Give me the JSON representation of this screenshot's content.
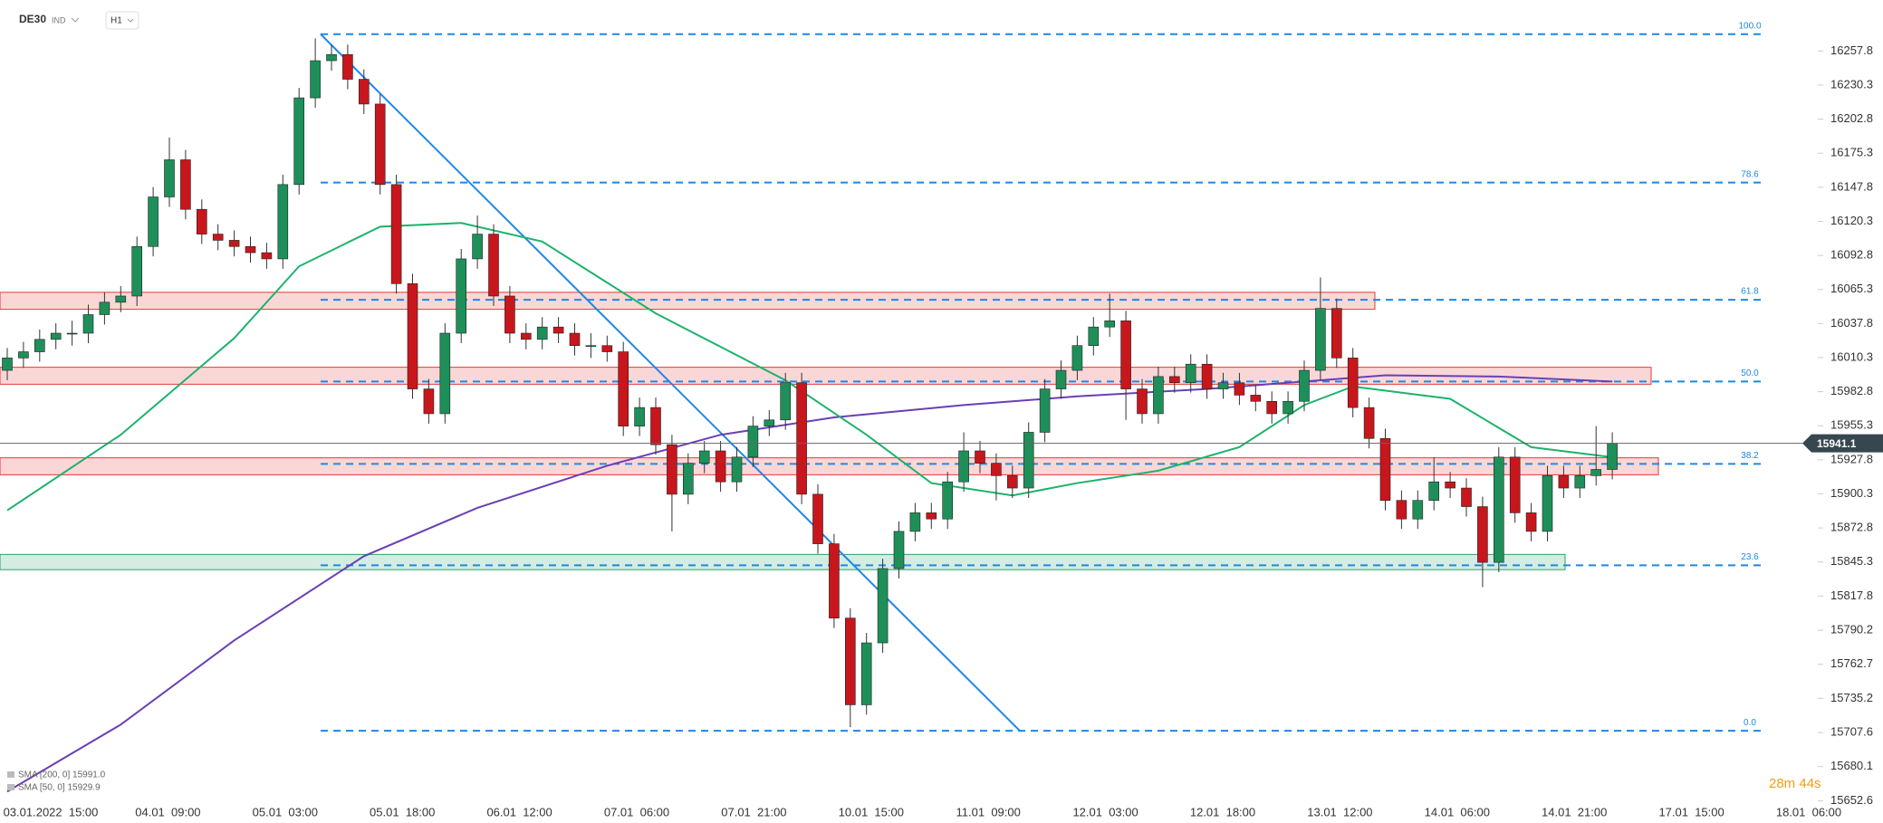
{
  "header": {
    "symbol": "DE30",
    "kind": "IND",
    "interval": "H1"
  },
  "chart_data": {
    "type": "candlestick",
    "ylim": [
      15647,
      16299
    ],
    "yticks": [
      15652.6,
      15680.1,
      15707.6,
      15735.2,
      15762.7,
      15790.2,
      15817.8,
      15845.3,
      15872.8,
      15900.3,
      15927.8,
      15955.3,
      15982.8,
      16010.3,
      16037.8,
      16065.3,
      16092.8,
      16120.3,
      16147.8,
      16175.3,
      16202.8,
      16230.3,
      16257.8
    ],
    "x_labels": [
      "03.01.2022  15:00",
      "04.01  09:00",
      "05.01  03:00",
      "05.01  18:00",
      "06.01  12:00",
      "07.01  06:00",
      "07.01  21:00",
      "10.01  15:00",
      "11.01  09:00",
      "12.01  03:00",
      "12.01  18:00",
      "13.01  12:00",
      "14.01  06:00",
      "14.01  21:00",
      "17.01  15:00",
      "18.01  06:00"
    ],
    "up_color": "#1f8f5a",
    "down_color": "#c8161d",
    "ohlc": [
      [
        16000,
        16018,
        15992,
        16010
      ],
      [
        16010,
        16023,
        16002,
        16015
      ],
      [
        16015,
        16033,
        16007,
        16025
      ],
      [
        16025,
        16038,
        16017,
        16030
      ],
      [
        16030,
        16040,
        16020,
        16030
      ],
      [
        16030,
        16053,
        16022,
        16045
      ],
      [
        16045,
        16063,
        16037,
        16055
      ],
      [
        16055,
        16068,
        16047,
        16060
      ],
      [
        16060,
        16108,
        16052,
        16100
      ],
      [
        16100,
        16148,
        16092,
        16140
      ],
      [
        16140,
        16188,
        16132,
        16170
      ],
      [
        16170,
        16178,
        16122,
        16130
      ],
      [
        16130,
        16138,
        16102,
        16110
      ],
      [
        16110,
        16118,
        16097,
        16105
      ],
      [
        16105,
        16113,
        16092,
        16100
      ],
      [
        16100,
        16108,
        16087,
        16095
      ],
      [
        16095,
        16103,
        16082,
        16090
      ],
      [
        16090,
        16158,
        16082,
        16150
      ],
      [
        16150,
        16228,
        16142,
        16220
      ],
      [
        16220,
        16268,
        16212,
        16250
      ],
      [
        16250,
        16263,
        16242,
        16255
      ],
      [
        16255,
        16263,
        16227,
        16235
      ],
      [
        16235,
        16243,
        16207,
        16215
      ],
      [
        16215,
        16223,
        16142,
        16150
      ],
      [
        16150,
        16158,
        16062,
        16070
      ],
      [
        16070,
        16078,
        15977,
        15985
      ],
      [
        15985,
        15993,
        15957,
        15965
      ],
      [
        15965,
        16038,
        15957,
        16030
      ],
      [
        16030,
        16098,
        16022,
        16090
      ],
      [
        16090,
        16125,
        16082,
        16110
      ],
      [
        16110,
        16118,
        16052,
        16060
      ],
      [
        16060,
        16068,
        16022,
        16030
      ],
      [
        16030,
        16038,
        16017,
        16025
      ],
      [
        16025,
        16043,
        16017,
        16035
      ],
      [
        16035,
        16043,
        16022,
        16030
      ],
      [
        16030,
        16038,
        16012,
        16020
      ],
      [
        16020,
        16030,
        16010,
        16020
      ],
      [
        16020,
        16028,
        16007,
        16015
      ],
      [
        16015,
        16023,
        15947,
        15955
      ],
      [
        15955,
        15978,
        15947,
        15970
      ],
      [
        15970,
        15978,
        15932,
        15940
      ],
      [
        15940,
        15948,
        15870,
        15900
      ],
      [
        15900,
        15933,
        15892,
        15925
      ],
      [
        15925,
        15943,
        15917,
        15935
      ],
      [
        15935,
        15943,
        15902,
        15910
      ],
      [
        15910,
        15938,
        15902,
        15930
      ],
      [
        15930,
        15963,
        15922,
        15955
      ],
      [
        15955,
        15968,
        15947,
        15960
      ],
      [
        15960,
        15998,
        15952,
        15990
      ],
      [
        15990,
        15998,
        15892,
        15900
      ],
      [
        15900,
        15908,
        15852,
        15860
      ],
      [
        15860,
        15868,
        15792,
        15800
      ],
      [
        15800,
        15808,
        15712,
        15730
      ],
      [
        15730,
        15788,
        15722,
        15780
      ],
      [
        15780,
        15848,
        15772,
        15840
      ],
      [
        15840,
        15878,
        15832,
        15870
      ],
      [
        15870,
        15893,
        15862,
        15885
      ],
      [
        15885,
        15893,
        15872,
        15880
      ],
      [
        15880,
        15918,
        15872,
        15910
      ],
      [
        15910,
        15950,
        15902,
        15935
      ],
      [
        15935,
        15943,
        15917,
        15925
      ],
      [
        15925,
        15933,
        15895,
        15915
      ],
      [
        15915,
        15923,
        15897,
        15905
      ],
      [
        15905,
        15958,
        15897,
        15950
      ],
      [
        15950,
        15993,
        15942,
        15985
      ],
      [
        15985,
        16008,
        15977,
        16000
      ],
      [
        16000,
        16028,
        15992,
        16020
      ],
      [
        16020,
        16043,
        16012,
        16035
      ],
      [
        16035,
        16062,
        16027,
        16040
      ],
      [
        16040,
        16048,
        15960,
        15985
      ],
      [
        15985,
        15993,
        15957,
        15965
      ],
      [
        15965,
        16003,
        15957,
        15995
      ],
      [
        15995,
        16003,
        15982,
        15990
      ],
      [
        15990,
        16013,
        15982,
        16005
      ],
      [
        16005,
        16013,
        15977,
        15985
      ],
      [
        15985,
        15998,
        15977,
        15990
      ],
      [
        15990,
        15998,
        15972,
        15980
      ],
      [
        15980,
        15988,
        15967,
        15975
      ],
      [
        15975,
        15983,
        15957,
        15965
      ],
      [
        15965,
        15983,
        15957,
        15975
      ],
      [
        15975,
        16008,
        15967,
        16000
      ],
      [
        16000,
        16075,
        15992,
        16050
      ],
      [
        16050,
        16058,
        16002,
        16010
      ],
      [
        16010,
        16018,
        15962,
        15970
      ],
      [
        15970,
        15978,
        15937,
        15945
      ],
      [
        15945,
        15953,
        15887,
        15895
      ],
      [
        15895,
        15903,
        15872,
        15880
      ],
      [
        15880,
        15903,
        15872,
        15895
      ],
      [
        15895,
        15930,
        15887,
        15910
      ],
      [
        15910,
        15918,
        15897,
        15905
      ],
      [
        15905,
        15913,
        15882,
        15890
      ],
      [
        15890,
        15898,
        15825,
        15845
      ],
      [
        15845,
        15938,
        15837,
        15930
      ],
      [
        15930,
        15938,
        15877,
        15885
      ],
      [
        15885,
        15893,
        15862,
        15870
      ],
      [
        15870,
        15923,
        15862,
        15915
      ],
      [
        15915,
        15923,
        15897,
        15905
      ],
      [
        15905,
        15923,
        15897,
        15915
      ],
      [
        15915,
        15955,
        15907,
        15920
      ],
      [
        15920,
        15950,
        15912,
        15941.1
      ]
    ],
    "series": [
      {
        "name": "SMA [200, 0] 15991.0",
        "color": "#6a3fb5",
        "x": [
          0,
          7,
          14,
          22,
          29,
          37,
          44,
          51,
          59,
          66,
          74,
          81,
          85,
          92,
          99
        ],
        "values": [
          15660,
          15714,
          15782,
          15850,
          15889,
          15923,
          15948,
          15962,
          15972,
          15979,
          15985,
          15992,
          15996,
          15995,
          15991
        ]
      },
      {
        "name": "SMA [50, 0] 15929.9",
        "color": "#1db26b",
        "x": [
          0,
          7,
          14,
          18,
          23,
          28,
          33,
          40,
          48,
          53,
          57,
          62,
          66,
          71,
          76,
          80,
          83,
          89,
          94,
          99
        ],
        "values": [
          15887,
          15948,
          16026,
          16084,
          16116,
          16119,
          16104,
          16046,
          15992,
          15948,
          15909,
          15899,
          15909,
          15919,
          15938,
          15972,
          15987,
          15977,
          15938,
          15929.9
        ]
      }
    ],
    "fib": {
      "labels": [
        "100.0",
        "78.6",
        "61.8",
        "50.0",
        "38.2",
        "23.6",
        "0.0"
      ],
      "prices": [
        16271.4,
        16151.6,
        16057,
        15991,
        15924.5,
        15842.6,
        15709
      ],
      "color": "#1e88e5"
    },
    "zones": [
      {
        "low": 16049.3,
        "high": 16063.0,
        "color": "#e53935"
      },
      {
        "low": 15988.8,
        "high": 16002.5,
        "color": "#e53935"
      },
      {
        "low": 15915.7,
        "high": 15929.4,
        "color": "#e53935"
      },
      {
        "low": 15839.1,
        "high": 15851.4,
        "color": "#26a269"
      }
    ],
    "last_price": 15941.1,
    "timer": "28m 44s"
  }
}
